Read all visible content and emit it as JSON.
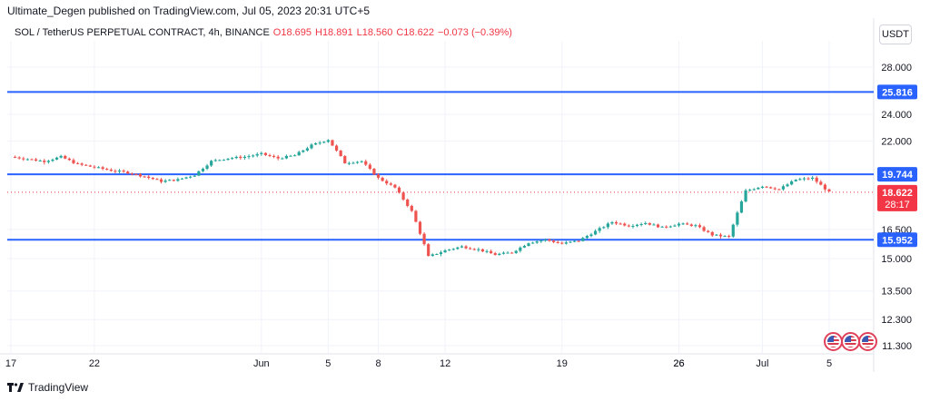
{
  "header": {
    "text": "Ultimate_Degen published on TradingView.com, Jul 05, 2023 20:31 UTC+5"
  },
  "legend": {
    "symbol": "SOL / TetherUS PERPETUAL CONTRACT, 4h, BINANCE",
    "open": "O18.695",
    "high": "H18.891",
    "low": "L18.560",
    "close": "C18.622",
    "change": "−0.073 (−0.39%)"
  },
  "currency": "USDT",
  "footer": {
    "brand": "TradingView"
  },
  "colors": {
    "up": "#26a69a",
    "down": "#ef5350",
    "level": "#2962ff",
    "price": "#f23645"
  },
  "chart_data": {
    "type": "candlestick",
    "ylim": [
      11.0,
      30.5
    ],
    "log_scale": true,
    "y_ticks": [
      "28.000",
      "24.000",
      "22.000",
      "16.500",
      "15.000",
      "13.500",
      "12.300",
      "11.300"
    ],
    "x_ticks": [
      "17",
      "22",
      "26",
      "Jun",
      "5",
      "8",
      "12",
      "19",
      "26",
      "Jul",
      "5"
    ],
    "horizontal_levels": [
      {
        "value": 25.816,
        "label": "25.816"
      },
      {
        "value": 19.744,
        "label": "19.744"
      },
      {
        "value": 15.952,
        "label": "15.952"
      }
    ],
    "current_price": {
      "value": 18.622,
      "label": "18.622",
      "countdown": "28:17"
    },
    "price_series": [
      [
        "May 17",
        20.9
      ],
      [
        "May 18",
        20.75
      ],
      [
        "May 19",
        20.6
      ],
      [
        "May 20",
        20.9
      ],
      [
        "May 21",
        20.4
      ],
      [
        "May 22",
        20.2
      ],
      [
        "May 23",
        20.0
      ],
      [
        "May 24",
        19.85
      ],
      [
        "May 25",
        19.6
      ],
      [
        "May 26",
        19.3
      ],
      [
        "May 27",
        19.4
      ],
      [
        "May 28",
        19.7
      ],
      [
        "May 29",
        20.6
      ],
      [
        "May 30",
        20.8
      ],
      [
        "May 31",
        20.9
      ],
      [
        "Jun 1",
        21.1
      ],
      [
        "Jun 2",
        20.8
      ],
      [
        "Jun 3",
        21.0
      ],
      [
        "Jun 4",
        21.7
      ],
      [
        "Jun 5",
        22.1
      ],
      [
        "Jun 6",
        20.5
      ],
      [
        "Jun 7",
        20.6
      ],
      [
        "Jun 8",
        19.5
      ],
      [
        "Jun 9",
        18.9
      ],
      [
        "Jun 10",
        17.5
      ],
      [
        "Jun 11",
        15.1
      ],
      [
        "Jun 12",
        15.4
      ],
      [
        "Jun 13",
        15.6
      ],
      [
        "Jun 14",
        15.45
      ],
      [
        "Jun 15",
        15.2
      ],
      [
        "Jun 16",
        15.3
      ],
      [
        "Jun 17",
        15.8
      ],
      [
        "Jun 18",
        15.95
      ],
      [
        "Jun 19",
        15.75
      ],
      [
        "Jun 20",
        15.9
      ],
      [
        "Jun 21",
        16.4
      ],
      [
        "Jun 22",
        16.9
      ],
      [
        "Jun 23",
        16.7
      ],
      [
        "Jun 24",
        16.85
      ],
      [
        "Jun 25",
        16.6
      ],
      [
        "Jun 26",
        16.8
      ],
      [
        "Jun 27",
        16.7
      ],
      [
        "Jun 28",
        16.2
      ],
      [
        "Jun 29",
        16.1
      ],
      [
        "Jun 30",
        18.7
      ],
      [
        "Jul 1",
        19.0
      ],
      [
        "Jul 2",
        18.8
      ],
      [
        "Jul 3",
        19.4
      ],
      [
        "Jul 4",
        19.5
      ],
      [
        "Jul 5",
        18.622
      ]
    ]
  }
}
